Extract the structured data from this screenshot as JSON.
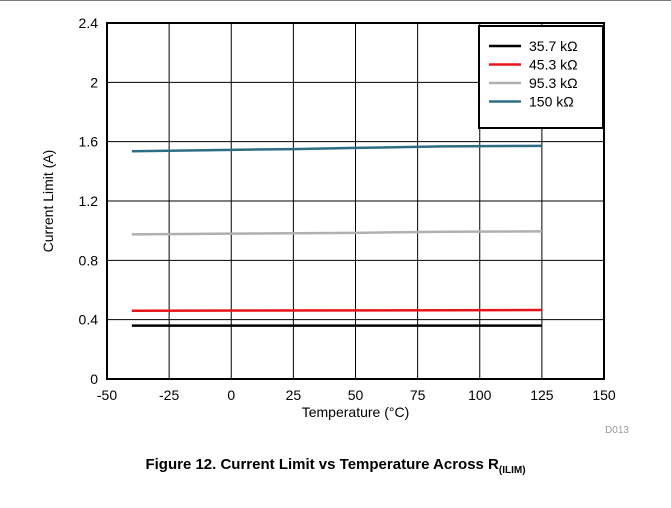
{
  "chart_data": {
    "type": "line",
    "xlabel": "Temperature (°C)",
    "ylabel": "Current Limit (A)",
    "xlim": [
      -50,
      150
    ],
    "ylim": [
      0,
      2.4
    ],
    "xticks": [
      "-50",
      "-25",
      "0",
      "25",
      "50",
      "75",
      "100",
      "125",
      "150"
    ],
    "yticks": [
      "0",
      "0.4",
      "0.8",
      "1.2",
      "1.6",
      "2",
      "2.4"
    ],
    "grid": true,
    "legend_position": "top-right",
    "series": [
      {
        "name": "35.7 kΩ",
        "color": "#000000",
        "x": [
          -40,
          125
        ],
        "y": [
          0.36,
          0.36
        ]
      },
      {
        "name": "45.3 kΩ",
        "color": "#e8141c",
        "x": [
          -40,
          125
        ],
        "y": [
          0.46,
          0.465
        ]
      },
      {
        "name": "95.3 kΩ",
        "color": "#b0b0b0",
        "x": [
          -40,
          0,
          50,
          85,
          125
        ],
        "y": [
          0.975,
          0.98,
          0.985,
          0.993,
          0.995
        ]
      },
      {
        "name": "150 kΩ",
        "color": "#2d6e86",
        "x": [
          -40,
          0,
          25,
          50,
          85,
          125
        ],
        "y": [
          1.535,
          1.545,
          1.55,
          1.558,
          1.568,
          1.572
        ]
      }
    ],
    "annotation": "D013"
  },
  "caption": {
    "main": "Figure 12. Current Limit vs Temperature Across R",
    "subscript": "(ILIM)"
  }
}
